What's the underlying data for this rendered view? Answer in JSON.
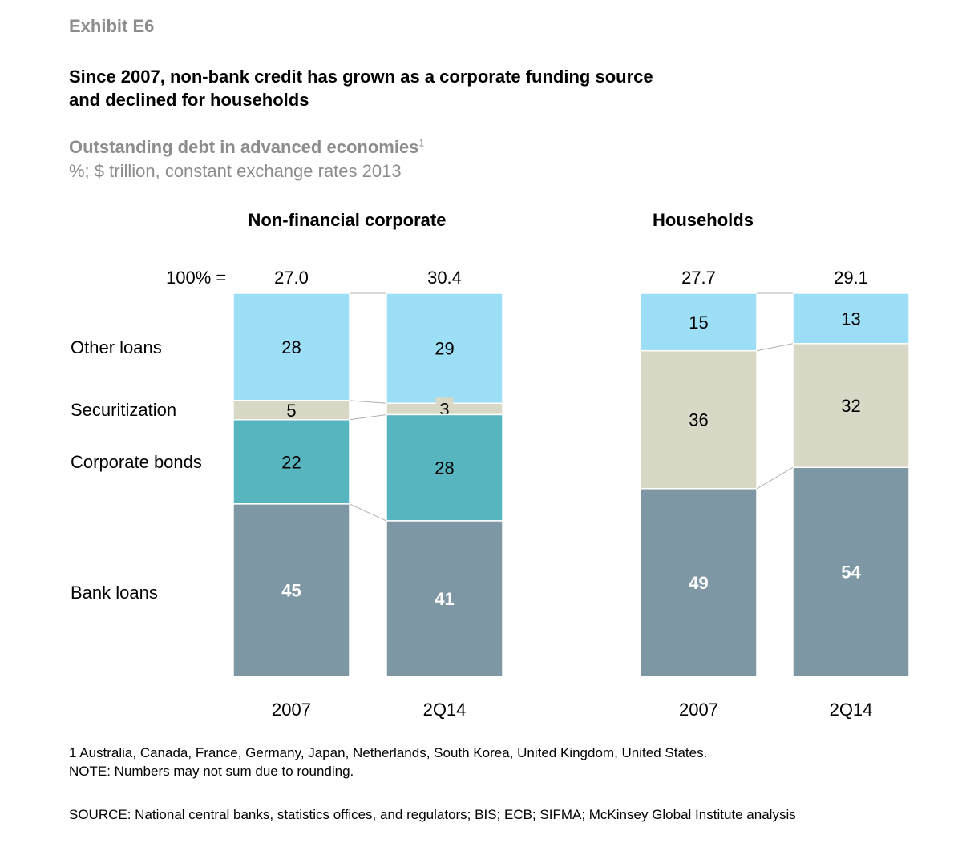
{
  "exhibit": "Exhibit E6",
  "title_line1": "Since 2007, non-bank credit has grown as a corporate funding source",
  "title_line2": "and declined for households",
  "subtitle": "Outstanding debt in advanced economies",
  "subtitle_footnote_marker": "1",
  "units": "%; $ trillion, constant exchange rates 2013",
  "footnote": "1   Australia, Canada, France, Germany, Japan, Netherlands, South Korea, United Kingdom, United States.",
  "note": "NOTE: Numbers may not sum due to rounding.",
  "source": "SOURCE:  National central banks, statistics offices, and regulators; BIS; ECB; SIFMA; McKinsey Global Institute analysis",
  "chart_data": {
    "type": "bar",
    "stacked": "100%",
    "total_label_prefix": "100% =",
    "legend": [
      "Other loans",
      "Securitization",
      "Corporate bonds",
      "Bank loans"
    ],
    "colors": {
      "Other loans": "#9CDEF5",
      "Securitization": "#D9D8C6",
      "Corporate bonds": "#56B5BF",
      "Bank loans": "#7E97A5"
    },
    "panels": [
      {
        "title": "Non-financial corporate",
        "categories": [
          "2007",
          "2Q14"
        ],
        "totals": [
          "27.0",
          "30.4"
        ],
        "series": [
          {
            "name": "Other loans",
            "values": [
              28,
              29
            ]
          },
          {
            "name": "Securitization",
            "values": [
              5,
              3
            ]
          },
          {
            "name": "Corporate bonds",
            "values": [
              22,
              28
            ]
          },
          {
            "name": "Bank loans",
            "values": [
              45,
              41
            ]
          }
        ]
      },
      {
        "title": "Households",
        "categories": [
          "2007",
          "2Q14"
        ],
        "totals": [
          "27.7",
          "29.1"
        ],
        "series": [
          {
            "name": "Other loans",
            "values": [
              15,
              13
            ]
          },
          {
            "name": "Securitization",
            "values": [
              36,
              32
            ]
          },
          {
            "name": "Corporate bonds",
            "values": [
              null,
              null
            ]
          },
          {
            "name": "Bank loans",
            "values": [
              49,
              54
            ]
          }
        ]
      }
    ]
  }
}
